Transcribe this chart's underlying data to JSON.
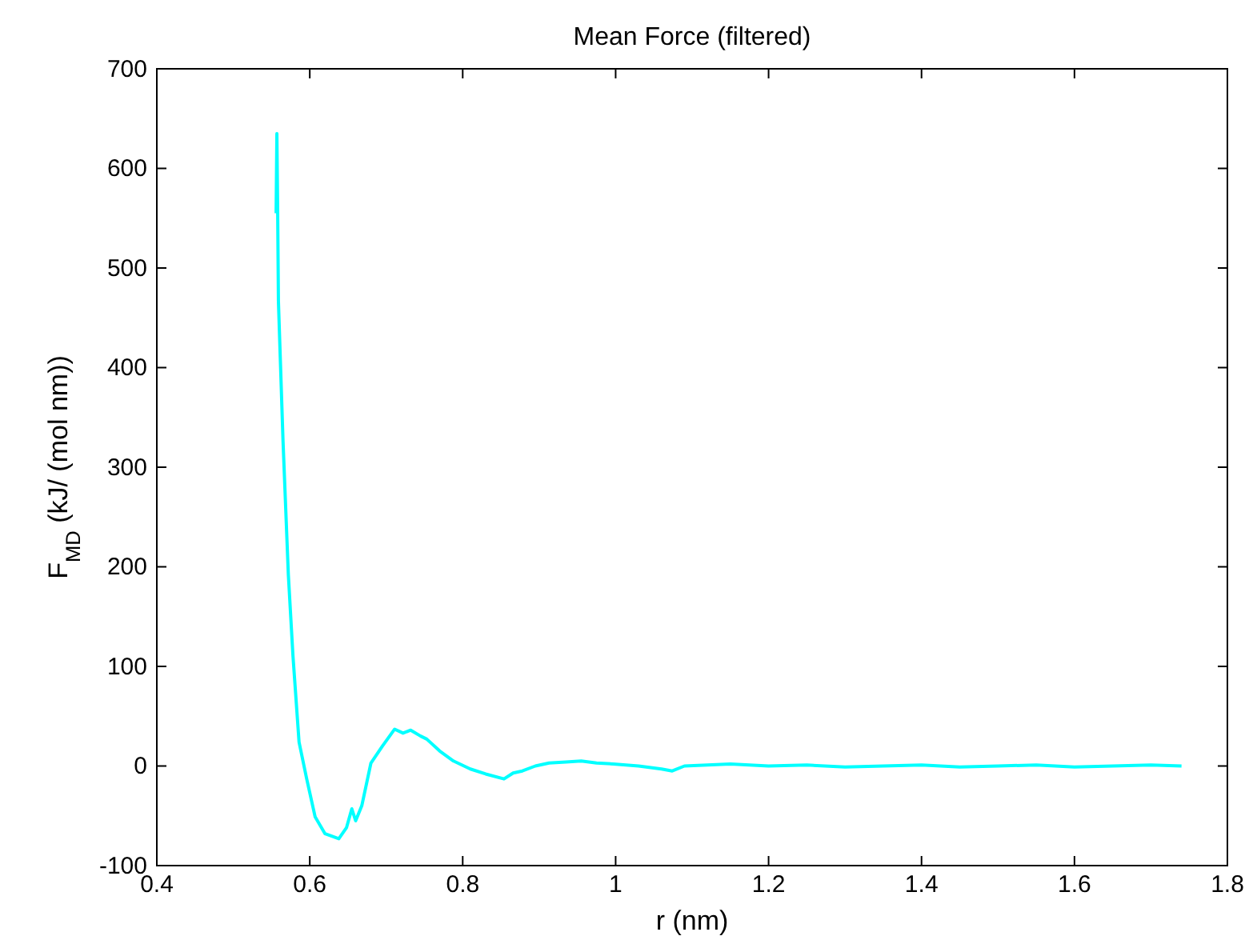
{
  "chart_data": {
    "type": "line",
    "title": "Mean Force (filtered)",
    "xlabel": "r (nm)",
    "ylabel": "F$_{MD}$ (kJ/ (mol nm))",
    "x": [
      0.556,
      0.557,
      0.558,
      0.559,
      0.565,
      0.572,
      0.578,
      0.586,
      0.596,
      0.607,
      0.62,
      0.638,
      0.648,
      0.655,
      0.66,
      0.668,
      0.68,
      0.695,
      0.711,
      0.722,
      0.732,
      0.745,
      0.753,
      0.77,
      0.788,
      0.81,
      0.83,
      0.854,
      0.866,
      0.878,
      0.895,
      0.913,
      0.935,
      0.955,
      0.975,
      0.997,
      1.03,
      1.06,
      1.074,
      1.09,
      1.12,
      1.15,
      1.2,
      1.25,
      1.3,
      1.35,
      1.4,
      1.45,
      1.5,
      1.55,
      1.6,
      1.65,
      1.7,
      1.74
    ],
    "series": [
      {
        "color": "#00ffff",
        "values": [
          555,
          635,
          560,
          467,
          327,
          192,
          111,
          24,
          -13,
          -51,
          -68,
          -73,
          -62,
          -43,
          -55,
          -40,
          3,
          20,
          37,
          33,
          36,
          30,
          27,
          15,
          5,
          -3,
          -8,
          -13,
          -7,
          -5,
          0,
          3,
          4,
          5,
          3,
          2,
          0,
          -3,
          -5,
          0,
          1,
          2,
          0,
          1,
          -1,
          0,
          1,
          -1,
          0,
          1,
          -1,
          0,
          1,
          0
        ]
      }
    ],
    "xlim": [
      0.4,
      1.8
    ],
    "xticks": [
      0.4,
      0.6,
      0.8,
      1,
      1.2,
      1.4,
      1.6,
      1.8
    ],
    "ylim": [
      -100,
      700
    ],
    "yticks": [
      -100,
      0,
      100,
      200,
      300,
      400,
      500,
      600,
      700
    ],
    "grid": false,
    "marker": "none",
    "line_style": "solid"
  }
}
